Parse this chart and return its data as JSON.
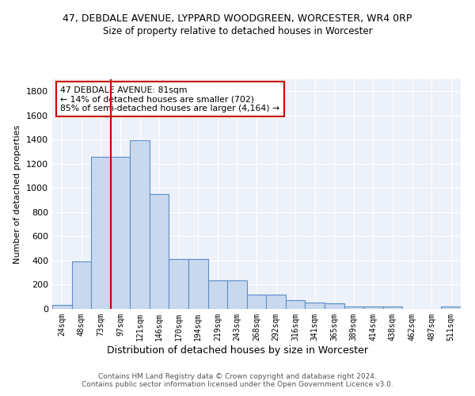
{
  "title": "47, DEBDALE AVENUE, LYPPARD WOODGREEN, WORCESTER, WR4 0RP",
  "subtitle": "Size of property relative to detached houses in Worcester",
  "xlabel": "Distribution of detached houses by size in Worcester",
  "ylabel": "Number of detached properties",
  "bar_color": "#c8d8ee",
  "bar_edge_color": "#5b8fc9",
  "bg_color": "#edf1f9",
  "categories": [
    "24sqm",
    "48sqm",
    "73sqm",
    "97sqm",
    "121sqm",
    "146sqm",
    "170sqm",
    "194sqm",
    "219sqm",
    "243sqm",
    "268sqm",
    "292sqm",
    "316sqm",
    "341sqm",
    "365sqm",
    "389sqm",
    "414sqm",
    "438sqm",
    "462sqm",
    "487sqm",
    "511sqm"
  ],
  "values": [
    30,
    390,
    1260,
    1260,
    1395,
    950,
    410,
    410,
    235,
    235,
    120,
    120,
    70,
    50,
    45,
    20,
    20,
    20,
    0,
    0,
    20
  ],
  "ylim": [
    0,
    1900
  ],
  "yticks": [
    0,
    200,
    400,
    600,
    800,
    1000,
    1200,
    1400,
    1600,
    1800
  ],
  "redline_x": 2.5,
  "annotation_title": "47 DEBDALE AVENUE: 81sqm",
  "annotation_line1": "← 14% of detached houses are smaller (702)",
  "annotation_line2": "85% of semi-detached houses are larger (4,164) →",
  "annotation_box_color": "#ffffff",
  "annotation_border_color": "#cc0000",
  "redline_color": "#cc0000",
  "footer1": "Contains HM Land Registry data © Crown copyright and database right 2024.",
  "footer2": "Contains public sector information licensed under the Open Government Licence v3.0."
}
